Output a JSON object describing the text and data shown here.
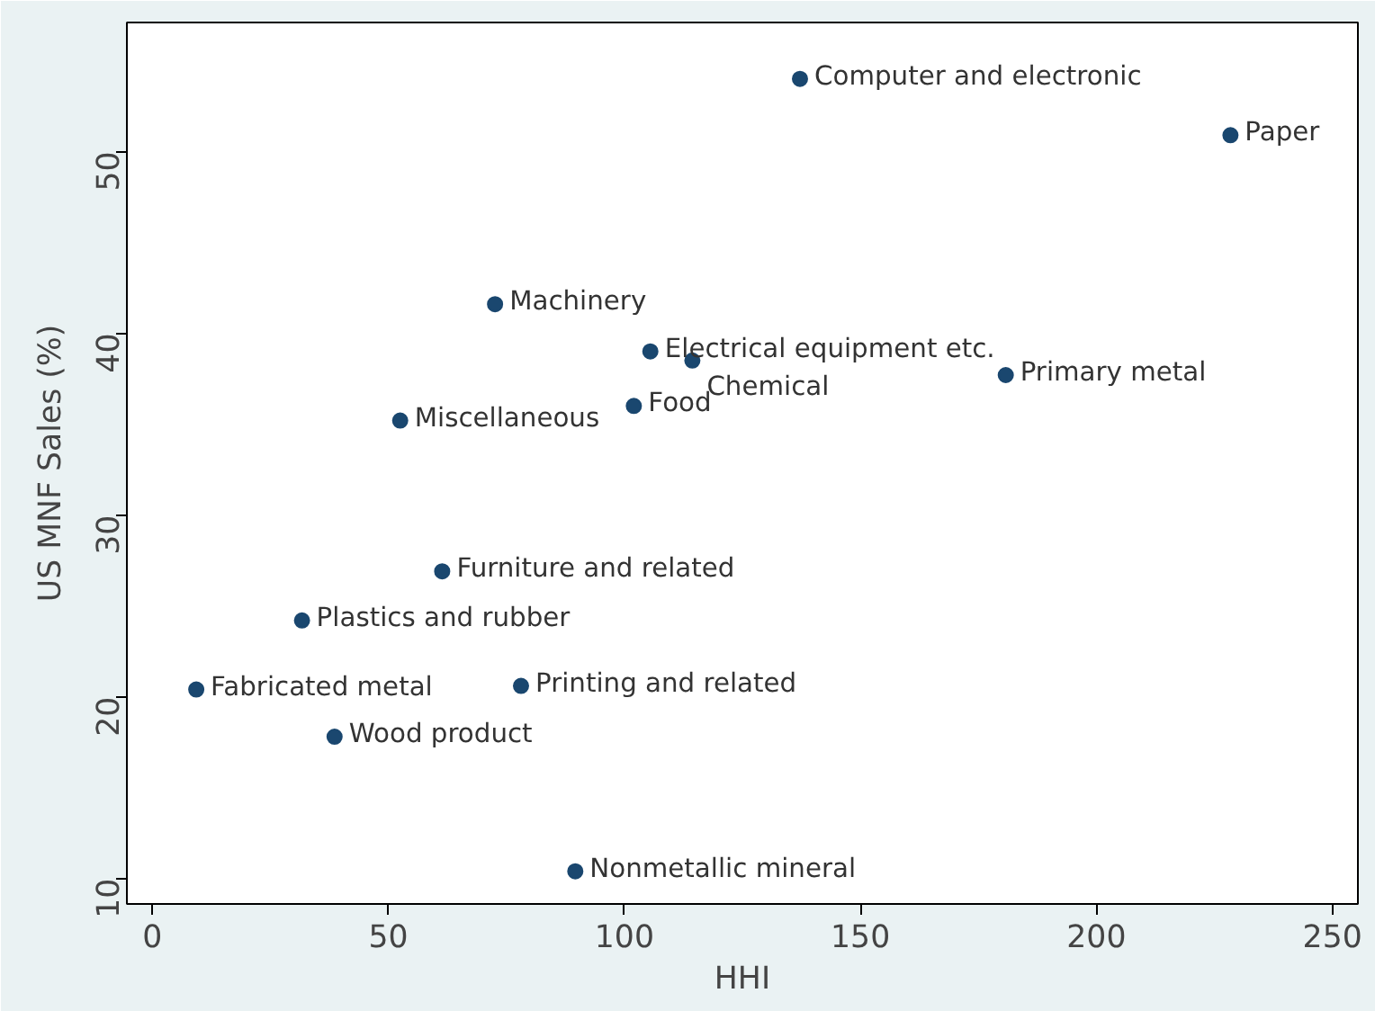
{
  "chart_data": {
    "type": "scatter",
    "xlabel": "HHI",
    "ylabel": "US MNF Sales (%)",
    "x": [
      137.2,
      228.4,
      72.6,
      105.5,
      114.4,
      180.8,
      102.0,
      52.5,
      61.4,
      31.7,
      9.3,
      78.1,
      38.6,
      89.6
    ],
    "series": [
      {
        "color": "#1a476f",
        "values": [
          54.0,
          50.9,
          41.6,
          39.0,
          38.5,
          37.7,
          36.0,
          35.2,
          26.9,
          24.2,
          20.4,
          20.6,
          17.8,
          10.4
        ]
      }
    ],
    "annotations": [
      {
        "text": "Computer and electronic",
        "x": 137.2,
        "y": 54.0
      },
      {
        "text": "Paper",
        "x": 228.4,
        "y": 50.9
      },
      {
        "text": "Machinery",
        "x": 72.6,
        "y": 41.6
      },
      {
        "text": "Electrical equipment etc.",
        "x": 105.5,
        "y": 39.0
      },
      {
        "text": "Chemical",
        "x": 114.4,
        "y": 38.5
      },
      {
        "text": "Primary metal",
        "x": 180.8,
        "y": 37.7
      },
      {
        "text": "Food",
        "x": 102.0,
        "y": 36.0
      },
      {
        "text": "Miscellaneous",
        "x": 52.5,
        "y": 35.2
      },
      {
        "text": "Furniture and related",
        "x": 61.4,
        "y": 26.9
      },
      {
        "text": "Plastics and rubber",
        "x": 31.7,
        "y": 24.2
      },
      {
        "text": "Fabricated metal",
        "x": 9.3,
        "y": 20.4
      },
      {
        "text": "Printing and related",
        "x": 78.1,
        "y": 20.6
      },
      {
        "text": "Wood product",
        "x": 38.6,
        "y": 17.8
      },
      {
        "text": "Nonmetallic mineral",
        "x": 89.6,
        "y": 10.4
      }
    ],
    "xlim": [
      -5.4,
      255.4
    ],
    "ylim": [
      8.6,
      57.1
    ],
    "xticks": [
      0,
      50,
      100,
      150,
      200,
      250
    ],
    "yticks": [
      10,
      20,
      30,
      40,
      50
    ],
    "grid": false,
    "marker": "circle"
  }
}
